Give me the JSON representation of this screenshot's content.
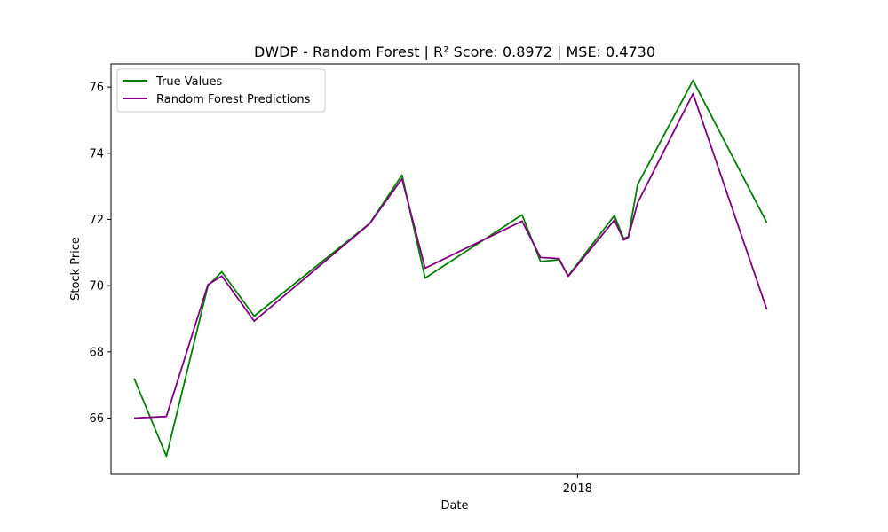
{
  "chart_data": {
    "type": "line",
    "title": "DWDP - Random Forest | R² Score: 0.8972 | MSE: 0.4730",
    "xlabel": "Date",
    "ylabel": "Stock Price",
    "x_ticks": [
      {
        "date": "2018-01-01",
        "label": "2018"
      }
    ],
    "y_ticks": [
      66,
      68,
      70,
      72,
      74,
      76
    ],
    "xlim": [
      "2017-09-22",
      "2018-02-18"
    ],
    "ylim": [
      64.3,
      76.7
    ],
    "grid": false,
    "legend_position": "upper-left",
    "x": [
      "2017-09-27",
      "2017-10-04",
      "2017-10-13",
      "2017-10-16",
      "2017-10-23",
      "2017-11-17",
      "2017-11-24",
      "2017-11-29",
      "2017-12-20",
      "2017-12-24",
      "2017-12-28",
      "2017-12-30",
      "2018-01-09",
      "2018-01-11",
      "2018-01-12",
      "2018-01-14",
      "2018-01-26",
      "2018-02-11"
    ],
    "series": [
      {
        "name": "True Values",
        "color": "#008000",
        "values": [
          67.2,
          64.85,
          70.0,
          70.42,
          69.08,
          71.88,
          73.34,
          70.23,
          72.14,
          70.73,
          70.78,
          70.3,
          72.12,
          71.42,
          71.48,
          73.05,
          76.2,
          71.9
        ]
      },
      {
        "name": "Random Forest Predictions",
        "color": "#800080",
        "values": [
          66.0,
          66.05,
          70.03,
          70.29,
          68.93,
          71.87,
          73.23,
          70.53,
          71.95,
          70.85,
          70.82,
          70.28,
          71.98,
          71.38,
          71.46,
          72.5,
          75.8,
          69.28
        ]
      }
    ]
  }
}
